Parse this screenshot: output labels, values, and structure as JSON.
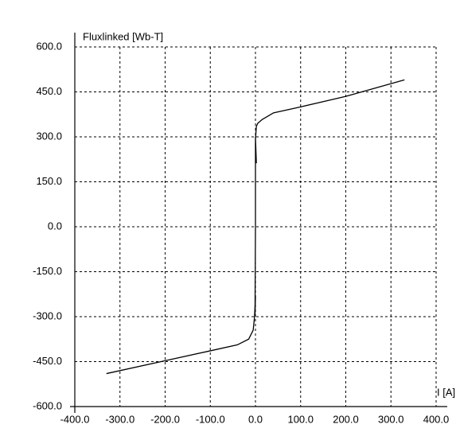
{
  "chart_data": {
    "type": "line",
    "y_label": "Fluxlinked [Wb-T]",
    "x_label": "I [A]",
    "x": [
      -330,
      -200,
      -100,
      -40,
      -15,
      -5,
      -2,
      0,
      -1,
      0,
      0,
      2,
      0,
      2,
      5,
      15,
      40,
      100,
      200,
      330
    ],
    "series": [
      {
        "color": "#000000",
        "values": [
          -490,
          -447,
          -414,
          -394,
          -375,
          -345,
          -300,
          -230,
          -300,
          0,
          300,
          212,
          290,
          335,
          345,
          358,
          380,
          400,
          435,
          490
        ]
      }
    ],
    "xlim": [
      -400,
      400
    ],
    "ylim": [
      -600,
      600
    ],
    "xticks": [
      {
        "value": -400,
        "label": "-400.0"
      },
      {
        "value": -300,
        "label": "-300.0"
      },
      {
        "value": -200,
        "label": "-200.0"
      },
      {
        "value": -100,
        "label": "-100.0"
      },
      {
        "value": 0,
        "label": "0.0"
      },
      {
        "value": 100,
        "label": "100.0"
      },
      {
        "value": 200,
        "label": "200.0"
      },
      {
        "value": 300,
        "label": "300.0"
      },
      {
        "value": 400,
        "label": "400.0"
      }
    ],
    "yticks": [
      {
        "value": -600,
        "label": "-600.0"
      },
      {
        "value": -450,
        "label": "-450.0"
      },
      {
        "value": -300,
        "label": "-300.0"
      },
      {
        "value": -150,
        "label": "-150.0"
      },
      {
        "value": 0,
        "label": "0.0"
      },
      {
        "value": 150,
        "label": "150.0"
      },
      {
        "value": 300,
        "label": "300.0"
      },
      {
        "value": 450,
        "label": "450.0"
      },
      {
        "value": 600,
        "label": "600.0"
      }
    ],
    "grid": true
  }
}
